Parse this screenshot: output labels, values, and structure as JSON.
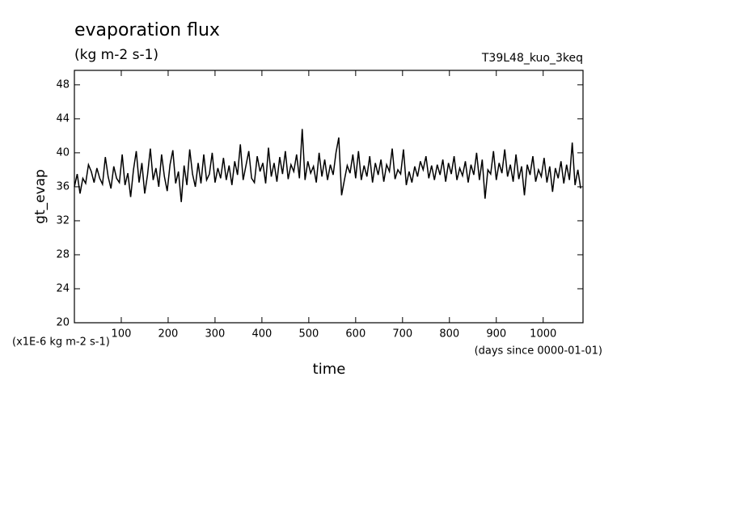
{
  "chart_data": {
    "type": "line",
    "title": "evaporation flux",
    "subtitle": "(kg m-2 s-1)",
    "annotation": "T39L48_kuo_3keq",
    "ylabel": "gt_evap",
    "xlabel": "time",
    "y_unit_note": "(x1E-6 kg m-2 s-1)",
    "x_unit_note": "(days since 0000-01-01)",
    "color": "#000000",
    "xlim": [
      0,
      1085
    ],
    "ylim": [
      20,
      49.7
    ],
    "xticks": [
      100,
      200,
      300,
      400,
      500,
      600,
      700,
      800,
      900,
      1000
    ],
    "yticks": [
      20,
      24,
      28,
      32,
      36,
      40,
      44,
      48
    ],
    "x": [
      0,
      6,
      12,
      18,
      24,
      30,
      36,
      42,
      48,
      54,
      60,
      66,
      72,
      78,
      84,
      90,
      96,
      102,
      108,
      114,
      120,
      126,
      132,
      138,
      144,
      150,
      156,
      162,
      168,
      174,
      180,
      186,
      192,
      198,
      204,
      210,
      216,
      222,
      228,
      234,
      240,
      246,
      252,
      258,
      264,
      270,
      276,
      282,
      288,
      294,
      300,
      306,
      312,
      318,
      324,
      330,
      336,
      342,
      348,
      354,
      360,
      366,
      372,
      378,
      384,
      390,
      396,
      402,
      408,
      414,
      420,
      426,
      432,
      438,
      444,
      450,
      456,
      462,
      468,
      474,
      480,
      486,
      492,
      498,
      504,
      510,
      516,
      522,
      528,
      534,
      540,
      546,
      552,
      558,
      564,
      570,
      576,
      582,
      588,
      594,
      600,
      606,
      612,
      618,
      624,
      630,
      636,
      642,
      648,
      654,
      660,
      666,
      672,
      678,
      684,
      690,
      696,
      702,
      708,
      714,
      720,
      726,
      732,
      738,
      744,
      750,
      756,
      762,
      768,
      774,
      780,
      786,
      792,
      798,
      804,
      810,
      816,
      822,
      828,
      834,
      840,
      846,
      852,
      858,
      864,
      870,
      876,
      882,
      888,
      894,
      900,
      906,
      912,
      918,
      924,
      930,
      936,
      942,
      948,
      954,
      960,
      966,
      972,
      978,
      984,
      990,
      996,
      1002,
      1008,
      1014,
      1020,
      1026,
      1032,
      1038,
      1044,
      1050,
      1056,
      1062,
      1068,
      1074,
      1080
    ],
    "values": [
      36.0,
      37.5,
      35.2,
      37.0,
      36.4,
      38.6,
      37.8,
      36.5,
      38.2,
      37.0,
      36.3,
      39.5,
      37.2,
      35.8,
      38.4,
      37.0,
      36.5,
      39.8,
      36.2,
      37.6,
      34.8,
      38.0,
      40.2,
      36.5,
      38.8,
      35.2,
      37.4,
      40.5,
      36.8,
      38.2,
      36.0,
      39.8,
      37.2,
      35.5,
      38.6,
      40.3,
      36.4,
      37.8,
      34.2,
      38.5,
      36.2,
      40.4,
      37.5,
      36.0,
      38.8,
      36.4,
      39.8,
      36.8,
      37.5,
      40.0,
      36.5,
      38.2,
      37.0,
      39.4,
      36.8,
      38.5,
      36.2,
      39.0,
      37.4,
      41.0,
      36.8,
      38.5,
      40.2,
      37.0,
      36.5,
      39.6,
      37.8,
      38.8,
      36.4,
      40.6,
      37.2,
      38.8,
      36.6,
      39.5,
      37.5,
      40.2,
      36.9,
      38.6,
      37.8,
      39.8,
      37.0,
      42.8,
      36.8,
      39.0,
      37.6,
      38.4,
      36.5,
      40.0,
      37.2,
      39.2,
      36.8,
      38.6,
      37.4,
      40.0,
      41.8,
      35.0,
      36.8,
      38.5,
      37.6,
      39.8,
      37.0,
      40.2,
      36.8,
      38.5,
      37.2,
      39.6,
      36.5,
      38.8,
      37.4,
      39.2,
      36.6,
      38.6,
      37.8,
      40.5,
      36.9,
      38.0,
      37.5,
      40.4,
      36.2,
      37.8,
      36.5,
      38.4,
      37.2,
      39.0,
      38.0,
      39.6,
      37.0,
      38.5,
      36.8,
      38.6,
      37.4,
      39.2,
      36.6,
      38.8,
      37.5,
      39.6,
      36.8,
      38.2,
      37.3,
      39.0,
      36.5,
      38.6,
      37.4,
      40.0,
      36.8,
      39.2,
      34.6,
      38.0,
      37.5,
      40.2,
      36.8,
      38.8,
      37.6,
      40.4,
      37.2,
      38.6,
      36.6,
      39.8,
      36.9,
      38.4,
      35.0,
      38.6,
      37.4,
      39.6,
      36.6,
      38.0,
      37.2,
      39.4,
      36.5,
      38.4,
      35.4,
      38.2,
      37.0,
      39.0,
      36.4,
      38.6,
      36.8,
      41.2,
      36.2,
      38.0,
      35.8
    ]
  }
}
